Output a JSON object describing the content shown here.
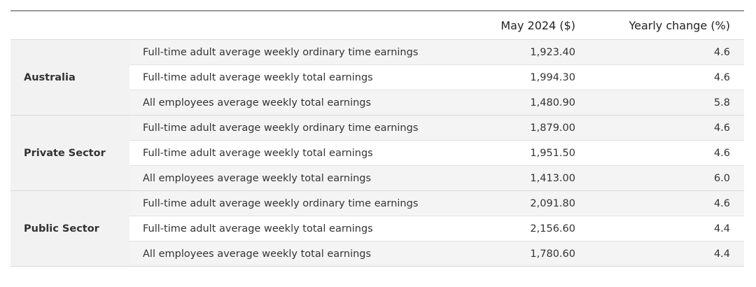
{
  "table": {
    "header": [
      "May 2024 ($)",
      "Yearly change (%)"
    ],
    "groups": [
      {
        "name": "Australia",
        "rows": [
          [
            "Full-time adult average weekly ordinary time earnings",
            "1,923.40",
            "4.6"
          ],
          [
            "Full-time adult average weekly total earnings",
            "1,994.30",
            "4.6"
          ],
          [
            "All employees average weekly total earnings",
            "1,480.90",
            "5.8"
          ]
        ]
      },
      {
        "name": "Private Sector",
        "rows": [
          [
            "Full-time adult average weekly ordinary time earnings",
            "1,879.00",
            "4.6"
          ],
          [
            "Full-time adult average weekly total earnings",
            "1,951.50",
            "4.6"
          ],
          [
            "All employees average weekly total earnings",
            "1,413.00",
            "6.0"
          ]
        ]
      },
      {
        "name": "Public Sector",
        "rows": [
          [
            "Full-time adult average weekly ordinary time earnings",
            "2,091.80",
            "4.6"
          ],
          [
            "Full-time adult average weekly total earnings",
            "2,156.60",
            "4.4"
          ],
          [
            "All employees average weekly total earnings",
            "1,780.60",
            "4.4"
          ]
        ]
      }
    ]
  }
}
